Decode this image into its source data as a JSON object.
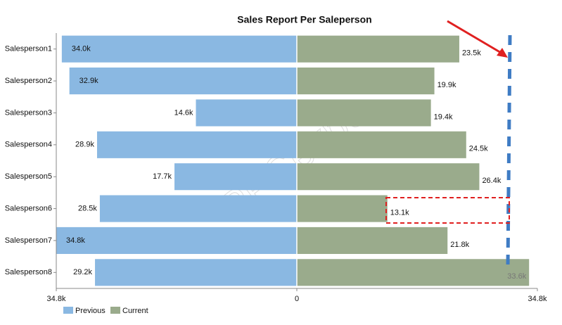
{
  "chart_data": {
    "type": "butterfly",
    "title": "Sales Report Per Saleperson",
    "categories": [
      "Salesperson1",
      "Salesperson2",
      "Salesperson3",
      "Salesperson4",
      "Salesperson5",
      "Salesperson6",
      "Salesperson7",
      "Salesperson8"
    ],
    "series": [
      {
        "name": "Previous",
        "color": "#8ab8e2",
        "values": [
          34000,
          32900,
          14600,
          28900,
          17700,
          28500,
          34800,
          29200
        ],
        "value_labels": [
          "34.0k",
          "32.9k",
          "14.6k",
          "28.9k",
          "17.7k",
          "28.5k",
          "34.8k",
          "29.2k"
        ]
      },
      {
        "name": "Current",
        "color": "#9aab8c",
        "values": [
          23500,
          19900,
          19400,
          24500,
          26400,
          13100,
          21800,
          33600
        ],
        "value_labels": [
          "23.5k",
          "19.9k",
          "19.4k",
          "24.5k",
          "26.4k",
          "13.1k",
          "21.8k",
          "33.6k"
        ]
      }
    ],
    "xlim": [
      -34800,
      34800
    ],
    "xticks": [
      {
        "value": -34800,
        "label": "34.8k"
      },
      0,
      {
        "value": 34800,
        "label": "34.8k"
      }
    ],
    "watermark": "PPCexpo"
  }
}
